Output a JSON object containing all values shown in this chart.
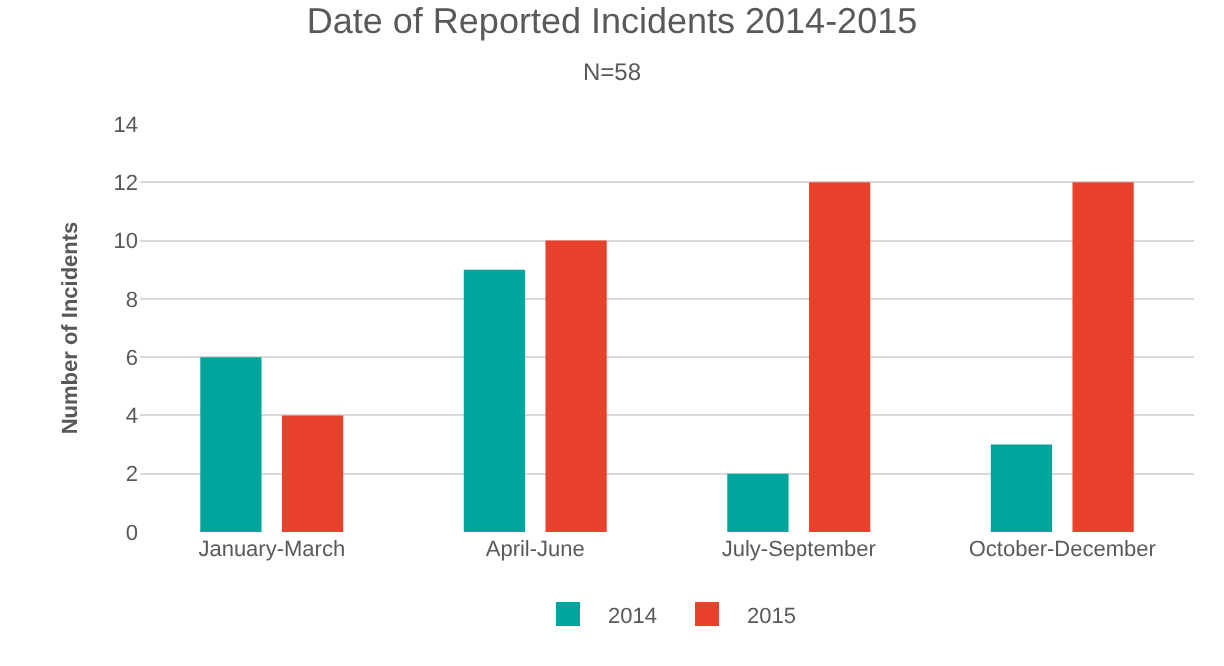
{
  "chart_data": {
    "type": "bar",
    "title": "Date of Reported Incidents 2014-2015",
    "subtitle": "N=58",
    "ylabel": "Number of Incidents",
    "categories": [
      "January-March",
      "April-June",
      "July-September",
      "October-December"
    ],
    "series": [
      {
        "name": "2014",
        "color": "#00a59b",
        "values": [
          6,
          9,
          2,
          3
        ]
      },
      {
        "name": "2015",
        "color": "#e8412c",
        "values": [
          4,
          10,
          12,
          12
        ]
      }
    ],
    "ylim": [
      0,
      14
    ],
    "yticks": [
      0,
      2,
      4,
      6,
      8,
      10,
      12,
      14
    ],
    "grid": "y",
    "legend": "bottom"
  }
}
